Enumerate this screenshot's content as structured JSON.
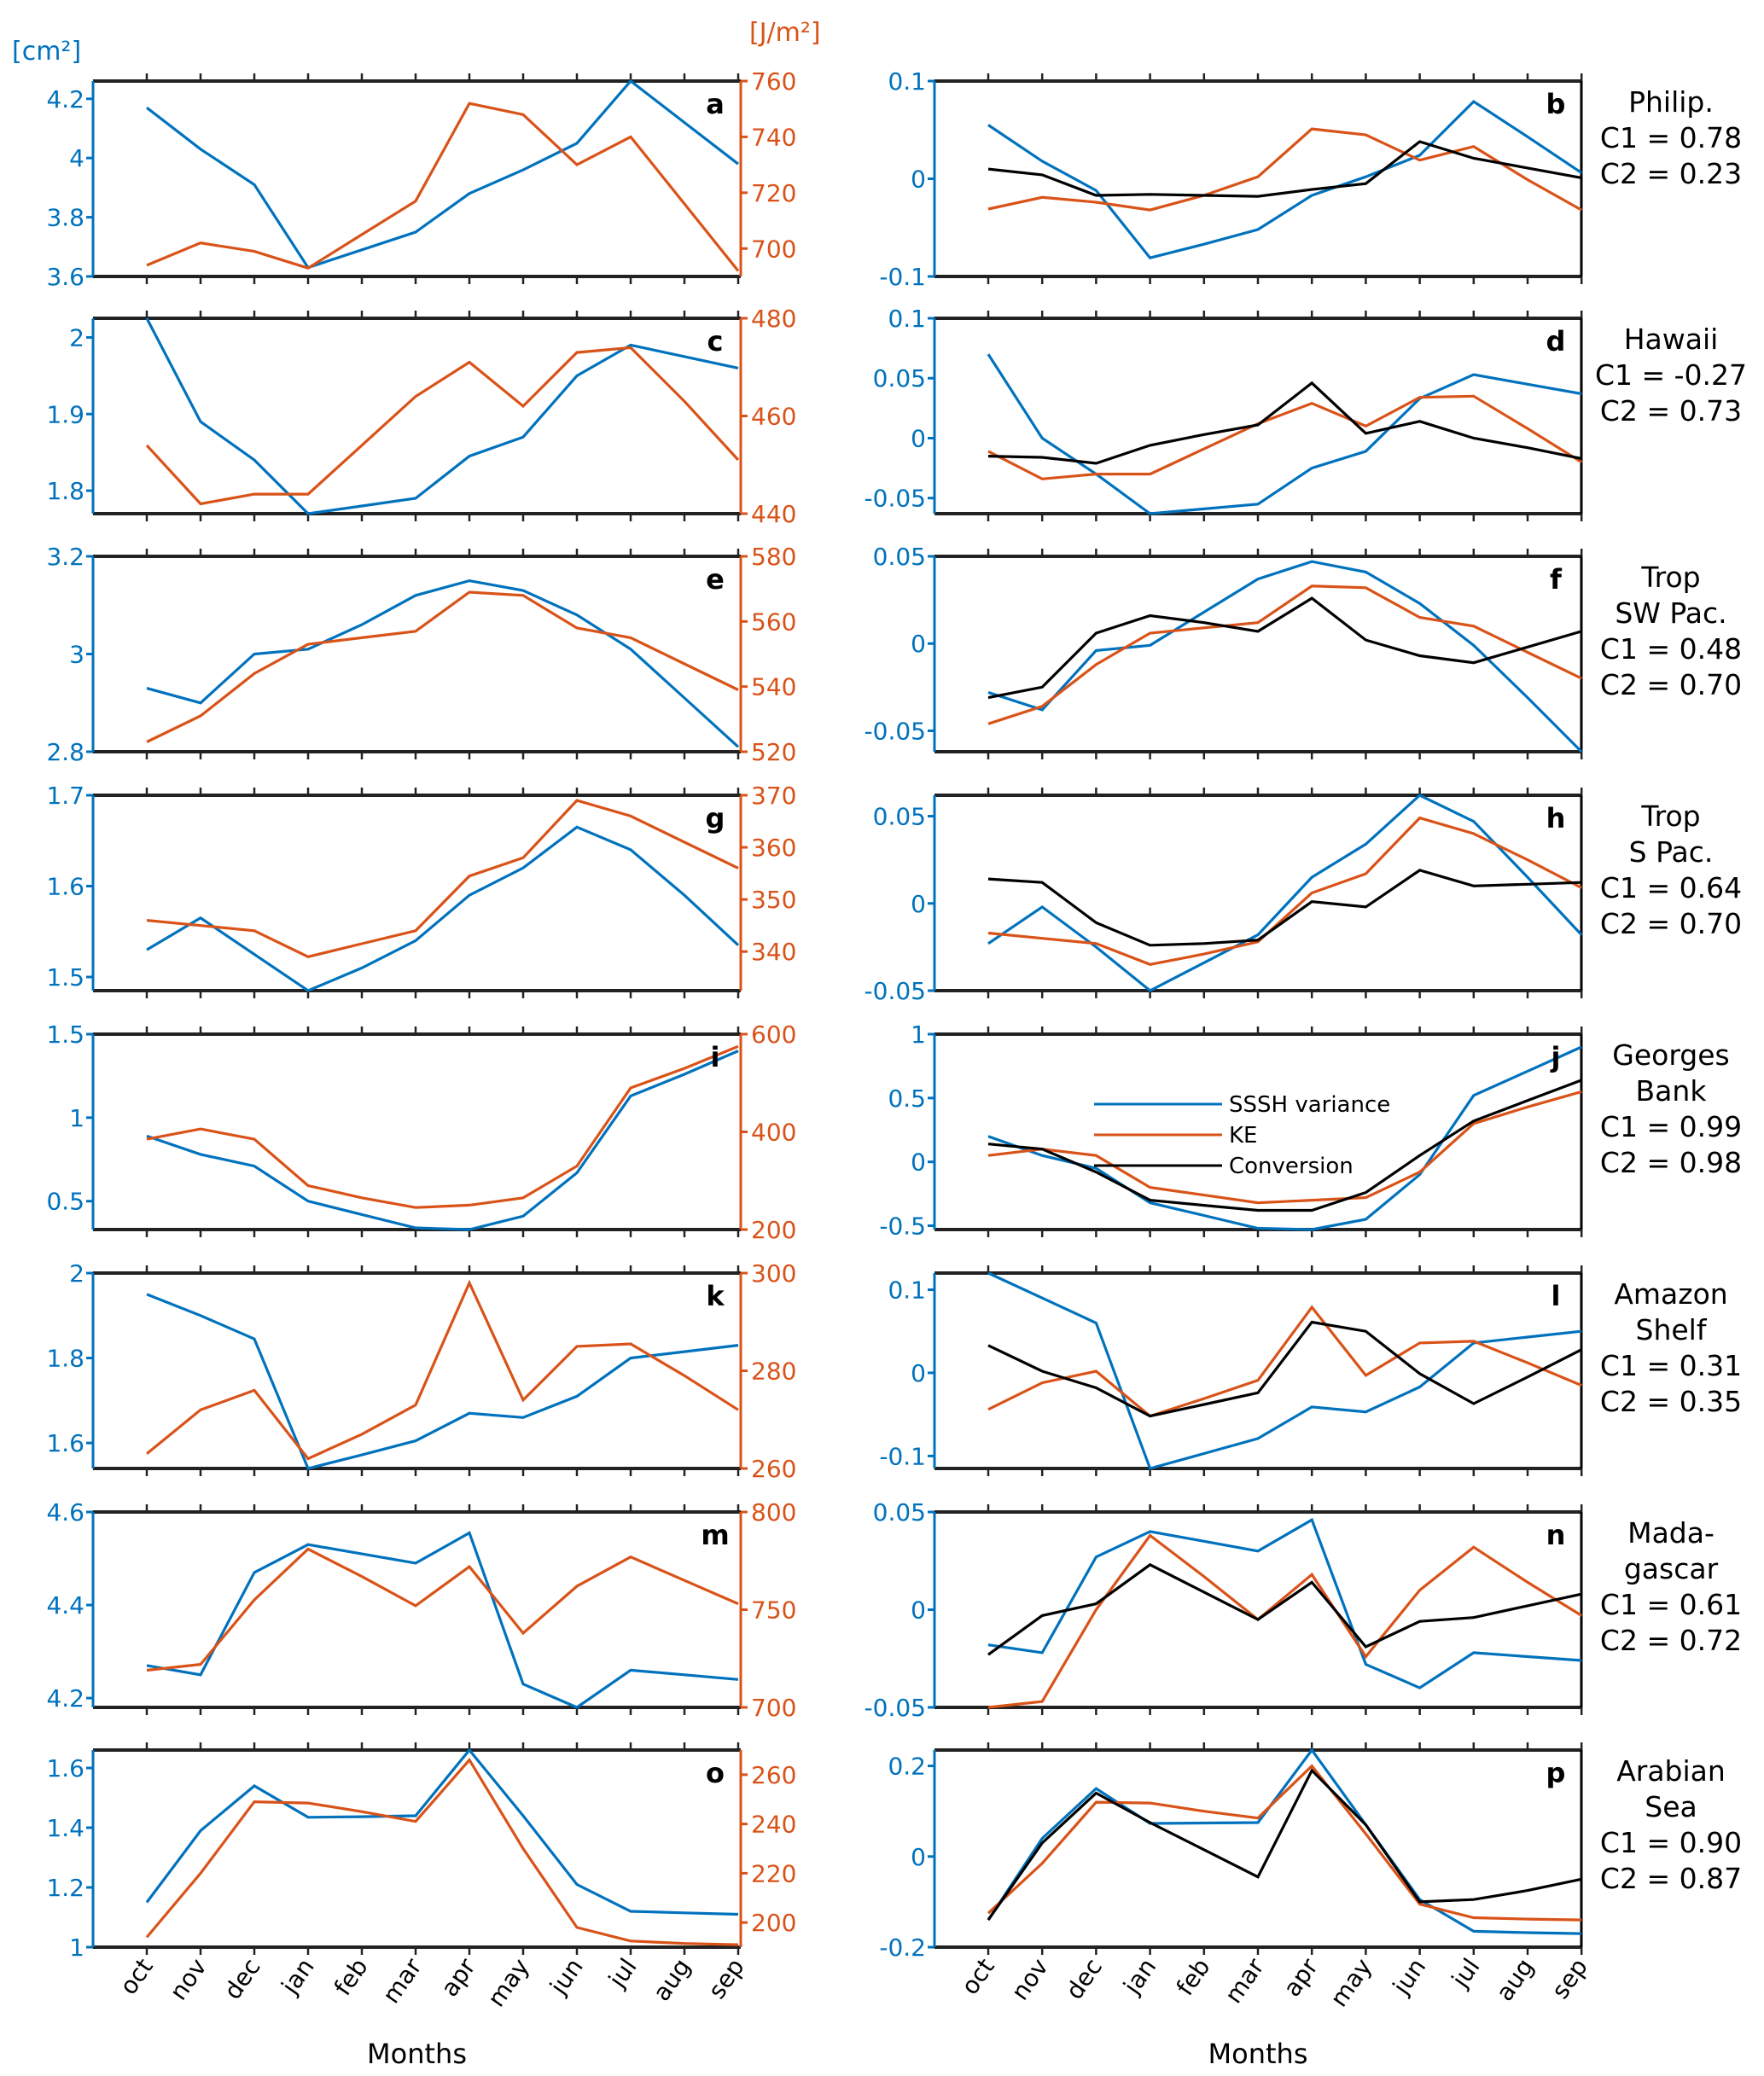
{
  "colors": {
    "sssh": "#0072BD",
    "ke": "#D95319",
    "conversion": "#000000",
    "axis": "#000000"
  },
  "units": {
    "left": "[cm²]",
    "right": "[J/m²]"
  },
  "chart_data": {
    "type": "line",
    "months": [
      "oct",
      "nov",
      "dec",
      "jan",
      "feb",
      "mar",
      "apr",
      "may",
      "jun",
      "jul",
      "aug",
      "sep"
    ],
    "xlabel": "Months",
    "legend": {
      "placement": "center (panel j)",
      "entries": [
        "SSSH variance",
        "KE",
        "Conversion"
      ]
    },
    "left_panels": [
      {
        "letter": "a",
        "ylim_left": [
          3.6,
          4.26
        ],
        "ylim_right": [
          690,
          760
        ],
        "yticks_left": [
          3.6,
          3.8,
          4,
          4.2
        ],
        "yticks_right": [
          700,
          720,
          740,
          760
        ],
        "sssh": [
          4.17,
          4.03,
          3.91,
          3.63,
          3.69,
          3.75,
          3.88,
          3.96,
          4.05,
          4.26,
          4.12,
          3.98
        ],
        "ke": [
          694,
          702,
          699,
          693,
          705,
          717,
          752,
          748,
          730,
          740,
          716,
          692
        ]
      },
      {
        "letter": "c",
        "ylim_left": [
          1.77,
          2.025
        ],
        "ylim_right": [
          440,
          480
        ],
        "yticks_left": [
          1.8,
          1.9,
          2
        ],
        "yticks_right": [
          440,
          460,
          480
        ],
        "sssh": [
          2.025,
          1.89,
          1.84,
          1.77,
          1.78,
          1.79,
          1.845,
          1.87,
          1.95,
          1.99,
          1.975,
          1.96
        ],
        "ke": [
          454,
          442,
          444,
          444,
          454,
          464,
          471,
          462,
          473,
          474,
          463,
          451
        ]
      },
      {
        "letter": "e",
        "ylim_left": [
          2.8,
          3.2
        ],
        "ylim_right": [
          520,
          580
        ],
        "yticks_left": [
          2.8,
          3,
          3.2
        ],
        "yticks_right": [
          520,
          540,
          560,
          580
        ],
        "sssh": [
          2.93,
          2.9,
          3.0,
          3.01,
          3.06,
          3.12,
          3.15,
          3.13,
          3.08,
          3.01,
          2.91,
          2.81
        ],
        "ke": [
          523,
          531,
          544,
          553,
          555,
          557,
          569,
          568,
          558,
          555,
          547,
          539
        ]
      },
      {
        "letter": "g",
        "ylim_left": [
          1.485,
          1.7
        ],
        "ylim_right": [
          332.5,
          370
        ],
        "yticks_left": [
          1.5,
          1.6,
          1.7
        ],
        "yticks_right": [
          340,
          350,
          360,
          370
        ],
        "sssh": [
          1.53,
          1.565,
          1.525,
          1.485,
          1.51,
          1.54,
          1.59,
          1.62,
          1.665,
          1.64,
          1.59,
          1.535
        ],
        "ke": [
          346,
          345,
          344,
          339,
          341.5,
          344,
          354.5,
          358,
          369,
          366,
          361,
          356
        ]
      },
      {
        "letter": "i",
        "ylim_left": [
          0.33,
          1.5
        ],
        "ylim_right": [
          200,
          600
        ],
        "yticks_left": [
          0.5,
          1,
          1.5
        ],
        "yticks_right": [
          200,
          400,
          600
        ],
        "sssh": [
          0.89,
          0.78,
          0.71,
          0.5,
          0.42,
          0.34,
          0.33,
          0.41,
          0.67,
          1.13,
          1.26,
          1.4
        ],
        "ke": [
          385,
          406,
          385,
          290,
          265,
          245,
          250,
          265,
          330,
          490,
          530,
          575
        ]
      },
      {
        "letter": "k",
        "ylim_left": [
          1.54,
          2.0
        ],
        "ylim_right": [
          260,
          300
        ],
        "yticks_left": [
          1.6,
          1.8,
          2
        ],
        "yticks_right": [
          260,
          280,
          300
        ],
        "sssh": [
          1.95,
          1.9,
          1.845,
          1.54,
          1.572,
          1.605,
          1.67,
          1.66,
          1.71,
          1.8,
          1.815,
          1.83
        ],
        "ke": [
          263,
          272,
          276,
          262,
          267,
          273,
          298,
          274,
          285,
          285.5,
          279,
          272
        ]
      },
      {
        "letter": "m",
        "ylim_left": [
          4.18,
          4.6
        ],
        "ylim_right": [
          700,
          800
        ],
        "yticks_left": [
          4.2,
          4.4,
          4.6
        ],
        "yticks_right": [
          700,
          750,
          800
        ],
        "sssh": [
          4.27,
          4.25,
          4.47,
          4.53,
          4.51,
          4.49,
          4.555,
          4.23,
          4.18,
          4.26,
          4.25,
          4.24
        ],
        "ke": [
          719,
          722,
          755,
          781,
          767,
          752,
          772,
          738,
          762,
          777,
          765,
          753
        ]
      },
      {
        "letter": "o",
        "ylim_left": [
          1.0,
          1.66
        ],
        "ylim_right": [
          190,
          270
        ],
        "yticks_left": [
          1,
          1.2,
          1.4,
          1.6
        ],
        "yticks_right": [
          200,
          220,
          240,
          260
        ],
        "sssh": [
          1.15,
          1.39,
          1.54,
          1.435,
          1.437,
          1.44,
          1.66,
          1.44,
          1.21,
          1.12,
          1.115,
          1.11
        ],
        "ke": [
          194,
          220,
          249,
          248.5,
          245,
          241,
          266,
          230,
          198,
          192.5,
          191.5,
          191
        ]
      }
    ],
    "right_panels": [
      {
        "letter": "b",
        "region": [
          "Philip."
        ],
        "c1": "C1 = 0.78",
        "c2": "C2 = 0.23",
        "ylim": [
          -0.1,
          0.1
        ],
        "yticks": [
          -0.1,
          0,
          0.1
        ],
        "ytick_labels": [
          "-0.1",
          "0",
          "0.1"
        ],
        "sssh": [
          0.055,
          0.018,
          -0.012,
          -0.081,
          -0.067,
          -0.052,
          -0.017,
          0.002,
          0.024,
          0.079,
          0.043,
          0.006
        ],
        "ke": [
          -0.031,
          -0.019,
          -0.024,
          -0.032,
          -0.017,
          0.002,
          0.051,
          0.045,
          0.019,
          0.033,
          -0.001,
          -0.032
        ],
        "conversion": [
          0.01,
          0.004,
          -0.017,
          -0.016,
          -0.017,
          -0.018,
          -0.011,
          -0.005,
          0.038,
          0.021,
          0.011,
          0.001
        ]
      },
      {
        "letter": "d",
        "region": [
          "Hawaii"
        ],
        "c1": "C1 = -0.27",
        "c2": "C2 = 0.73",
        "ylim": [
          -0.063,
          0.1
        ],
        "yticks": [
          -0.05,
          0,
          0.05,
          0.1
        ],
        "ytick_labels": [
          "-0.05",
          "0",
          "0.05",
          "0.1"
        ],
        "sssh": [
          0.07,
          0.0,
          -0.03,
          -0.063,
          -0.059,
          -0.055,
          -0.025,
          -0.011,
          0.033,
          0.053,
          0.045,
          0.037
        ],
        "ke": [
          -0.011,
          -0.034,
          -0.03,
          -0.03,
          -0.009,
          0.012,
          0.029,
          0.01,
          0.034,
          0.035,
          0.008,
          -0.02
        ],
        "conversion": [
          -0.015,
          -0.016,
          -0.021,
          -0.006,
          0.003,
          0.011,
          0.046,
          0.004,
          0.014,
          0.0,
          -0.008,
          -0.017
        ]
      },
      {
        "letter": "f",
        "region": [
          "Trop",
          "SW Pac."
        ],
        "c1": "C1 = 0.48",
        "c2": "C2 = 0.70",
        "ylim": [
          -0.062,
          0.05
        ],
        "yticks": [
          -0.05,
          0,
          0.05
        ],
        "ytick_labels": [
          "-0.05",
          "0",
          "0.05"
        ],
        "sssh": [
          -0.028,
          -0.038,
          -0.004,
          -0.001,
          0.018,
          0.037,
          0.047,
          0.041,
          0.023,
          -0.001,
          -0.031,
          -0.062
        ],
        "ke": [
          -0.046,
          -0.036,
          -0.012,
          0.006,
          0.009,
          0.012,
          0.033,
          0.032,
          0.015,
          0.01,
          -0.005,
          -0.02
        ],
        "conversion": [
          -0.031,
          -0.025,
          0.006,
          0.016,
          0.012,
          0.007,
          0.026,
          0.002,
          -0.007,
          -0.011,
          -0.002,
          0.007
        ]
      },
      {
        "letter": "h",
        "region": [
          "Trop",
          "S Pac."
        ],
        "c1": "C1 = 0.64",
        "c2": "C2 = 0.70",
        "ylim": [
          -0.05,
          0.062
        ],
        "yticks": [
          -0.05,
          0,
          0.05
        ],
        "ytick_labels": [
          "-0.05",
          "0",
          "0.05"
        ],
        "sssh": [
          -0.023,
          -0.002,
          -0.025,
          -0.05,
          -0.034,
          -0.018,
          0.015,
          0.034,
          0.062,
          0.047,
          0.015,
          -0.018
        ],
        "ke": [
          -0.017,
          -0.02,
          -0.023,
          -0.035,
          -0.029,
          -0.022,
          0.006,
          0.017,
          0.049,
          0.04,
          0.025,
          0.009
        ],
        "conversion": [
          0.014,
          0.012,
          -0.011,
          -0.024,
          -0.023,
          -0.021,
          0.001,
          -0.002,
          0.019,
          0.01,
          0.011,
          0.012
        ]
      },
      {
        "letter": "j",
        "region": [
          "Georges",
          "Bank"
        ],
        "c1": "C1 = 0.99",
        "c2": "C2 = 0.98",
        "ylim": [
          -0.53,
          1.0
        ],
        "yticks": [
          -0.5,
          0,
          0.5,
          1
        ],
        "ytick_labels": [
          "-0.5",
          "0",
          "0.5",
          "1"
        ],
        "sssh": [
          0.2,
          0.05,
          -0.05,
          -0.32,
          -0.42,
          -0.52,
          -0.53,
          -0.45,
          -0.1,
          0.52,
          0.71,
          0.9
        ],
        "ke": [
          0.05,
          0.1,
          0.05,
          -0.2,
          -0.26,
          -0.32,
          -0.3,
          -0.28,
          -0.08,
          0.3,
          0.43,
          0.55
        ],
        "conversion": [
          0.14,
          0.1,
          -0.08,
          -0.3,
          -0.34,
          -0.38,
          -0.38,
          -0.24,
          0.05,
          0.32,
          0.48,
          0.64
        ],
        "show_legend": true
      },
      {
        "letter": "l",
        "region": [
          "Amazon",
          "Shelf"
        ],
        "c1": "C1 = 0.31",
        "c2": "C2 = 0.35",
        "ylim": [
          -0.115,
          0.12
        ],
        "yticks": [
          -0.1,
          0,
          0.1
        ],
        "ytick_labels": [
          "-0.1",
          "0",
          "0.1"
        ],
        "sssh": [
          0.12,
          0.09,
          0.06,
          -0.115,
          -0.097,
          -0.079,
          -0.041,
          -0.047,
          -0.017,
          0.036,
          0.043,
          0.05
        ],
        "ke": [
          -0.044,
          -0.012,
          0.002,
          -0.052,
          -0.031,
          -0.009,
          0.079,
          -0.003,
          0.036,
          0.038,
          0.012,
          -0.015
        ],
        "conversion": [
          0.033,
          0.002,
          -0.018,
          -0.052,
          -0.038,
          -0.024,
          0.061,
          0.05,
          -0.001,
          -0.037,
          -0.005,
          0.028
        ]
      },
      {
        "letter": "n",
        "region": [
          "Mada-",
          "gascar"
        ],
        "c1": "C1 = 0.61",
        "c2": "C2 = 0.72",
        "ylim": [
          -0.05,
          0.05
        ],
        "yticks": [
          -0.05,
          0,
          0.05
        ],
        "ytick_labels": [
          "-0.05",
          "0",
          "0.05"
        ],
        "sssh": [
          -0.018,
          -0.022,
          0.027,
          0.04,
          0.035,
          0.03,
          0.046,
          -0.028,
          -0.04,
          -0.022,
          -0.024,
          -0.026
        ],
        "ke": [
          -0.05,
          -0.047,
          0.0,
          0.038,
          0.017,
          -0.005,
          0.018,
          -0.024,
          0.01,
          0.032,
          0.014,
          -0.003
        ],
        "conversion": [
          -0.023,
          -0.003,
          0.003,
          0.023,
          0.009,
          -0.005,
          0.014,
          -0.019,
          -0.006,
          -0.004,
          0.002,
          0.008
        ]
      },
      {
        "letter": "p",
        "region": [
          "Arabian",
          "Sea"
        ],
        "c1": "C1 = 0.90",
        "c2": "C2 = 0.87",
        "ylim": [
          -0.2,
          0.235
        ],
        "yticks": [
          -0.2,
          0,
          0.2
        ],
        "ytick_labels": [
          "-0.2",
          "0",
          "0.2"
        ],
        "sssh": [
          -0.14,
          0.04,
          0.15,
          0.073,
          0.074,
          0.075,
          0.235,
          0.07,
          -0.095,
          -0.165,
          -0.168,
          -0.17
        ],
        "ke": [
          -0.125,
          -0.015,
          0.12,
          0.118,
          0.1,
          0.085,
          0.2,
          0.05,
          -0.105,
          -0.135,
          -0.138,
          -0.14
        ],
        "conversion": [
          -0.14,
          0.03,
          0.14,
          0.075,
          0.015,
          -0.045,
          0.19,
          0.07,
          -0.1,
          -0.095,
          -0.075,
          -0.05
        ]
      }
    ]
  }
}
